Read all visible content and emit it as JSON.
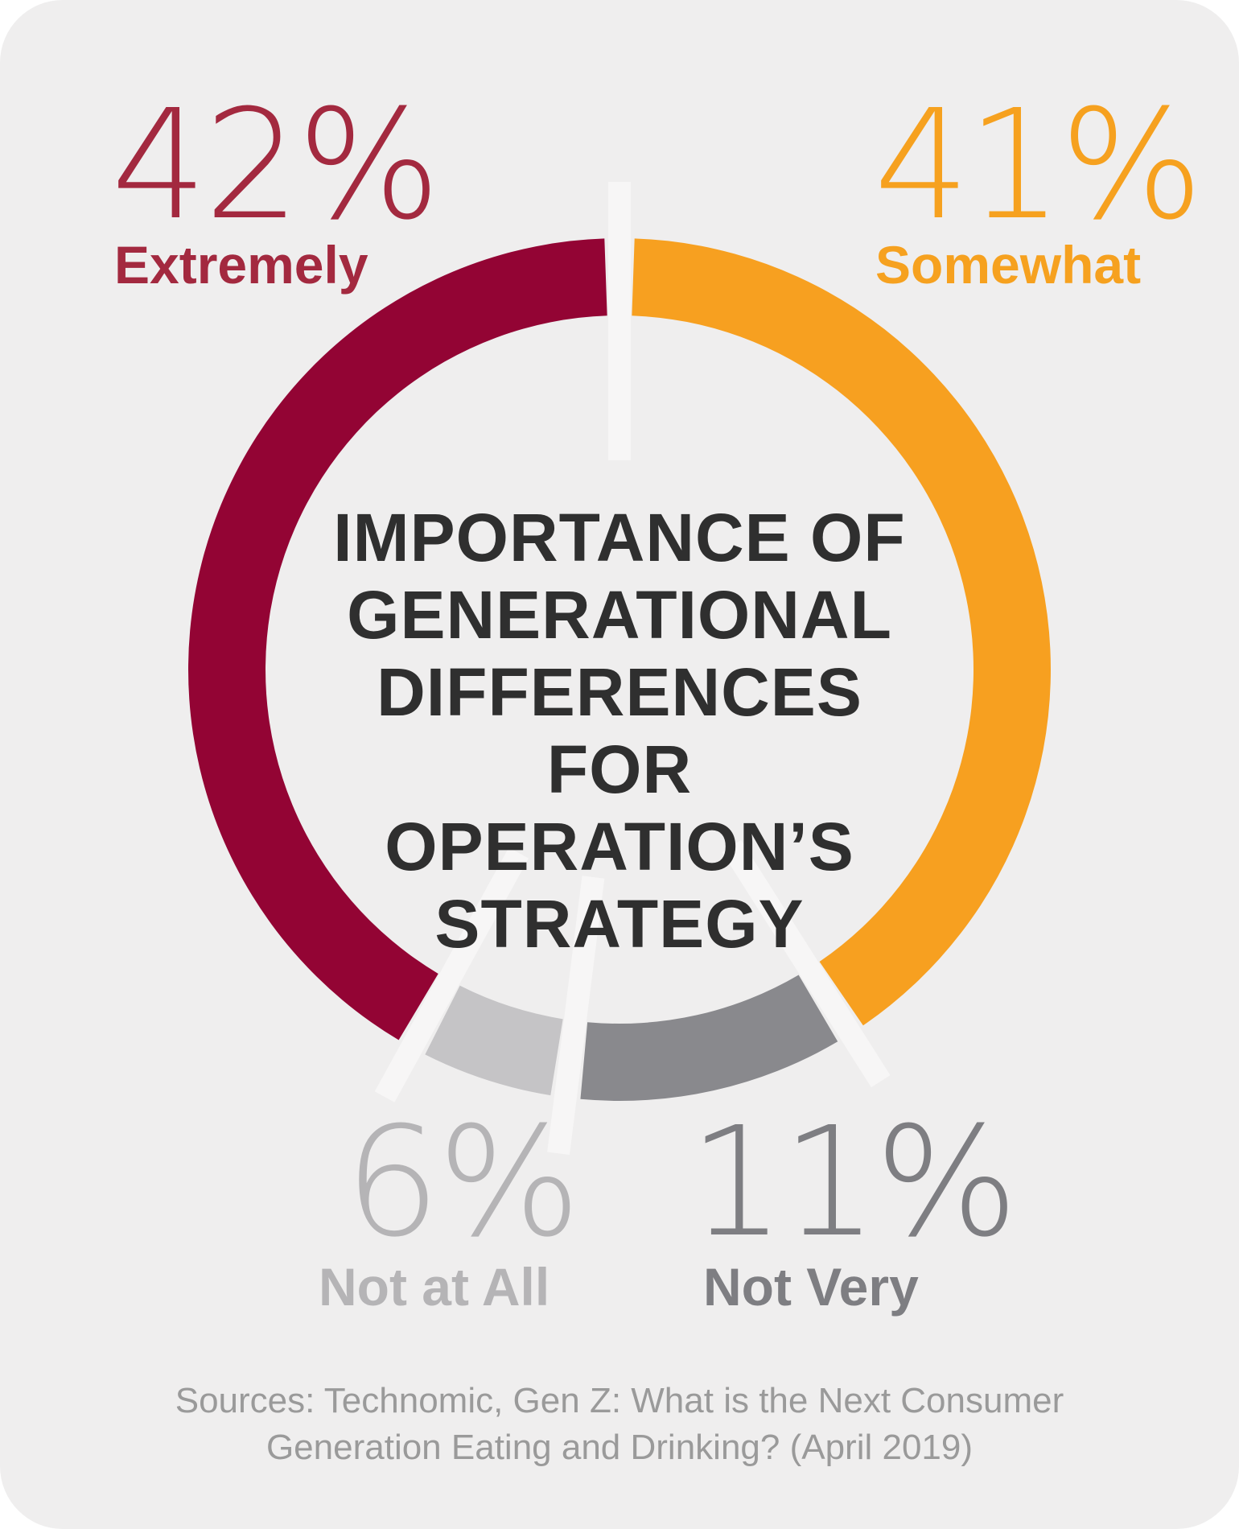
{
  "chart_data": {
    "type": "pie",
    "title_lines": [
      "IMPORTANCE OF",
      "GENERATIONAL",
      "DIFFERENCES FOR",
      "OPERATION’S",
      "STRATEGY"
    ],
    "slices": [
      {
        "label": "Extremely",
        "value": 42,
        "value_label": "42%",
        "color": "#930434"
      },
      {
        "label": "Somewhat",
        "value": 41,
        "value_label": "41%",
        "color": "#f7a020"
      },
      {
        "label": "Not Very",
        "value": 11,
        "value_label": "11%",
        "color": "#89898d"
      },
      {
        "label": "Not at All",
        "value": 6,
        "value_label": "6%",
        "color": "#c5c4c6"
      }
    ],
    "label_colors": {
      "Extremely": "#a3293f",
      "Somewhat": "#f6a11f",
      "Not Very": "#7e7e82",
      "Not at All": "#b5b4b6"
    },
    "background_color": "#efeeee",
    "separator_color": "#f7f6f6"
  },
  "source_lines": [
    "Sources: Technomic, Gen Z: What is the Next Consumer",
    "Generation Eating and Drinking? (April 2019)"
  ]
}
